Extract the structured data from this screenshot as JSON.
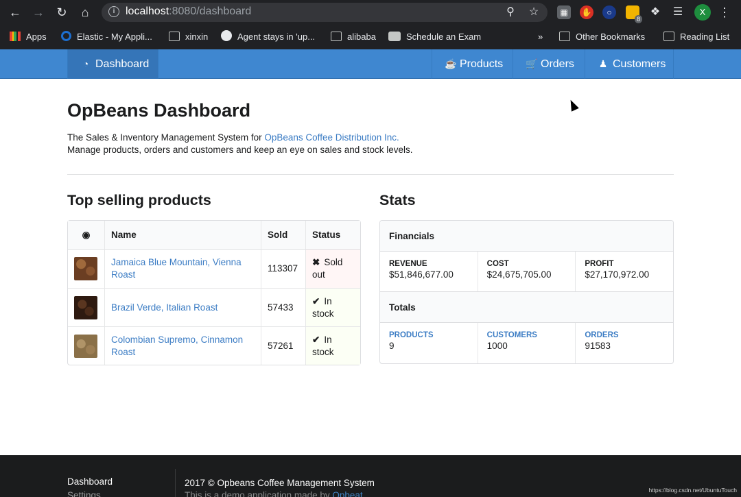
{
  "browser": {
    "url_host": "localhost",
    "url_port_path": ":8080/dashboard",
    "extension_badge": "8",
    "avatar_initial": "X",
    "bookmarks": [
      "Apps",
      "Elastic - My Appli...",
      "xinxin",
      "Agent stays in 'up...",
      "alibaba",
      "Schedule an Exam"
    ],
    "overflow": "»",
    "other_bookmarks": "Other Bookmarks",
    "reading_list": "Reading List"
  },
  "nav": {
    "dashboard": "Dashboard",
    "products": "Products",
    "orders": "Orders",
    "customers": "Customers"
  },
  "page": {
    "title": "OpBeans Dashboard",
    "intro_prefix": "The Sales & Inventory Management System for ",
    "intro_link": "OpBeans Coffee Distribution Inc.",
    "intro_line2": "Manage products, orders and customers and keep an eye on sales and stock levels."
  },
  "top_products": {
    "heading": "Top selling products",
    "columns": [
      "Name",
      "Sold",
      "Status"
    ],
    "rows": [
      {
        "name": "Jamaica Blue Mountain, Vienna Roast",
        "sold": "113307",
        "status": "Sold out",
        "color": "#6b3e22"
      },
      {
        "name": "Brazil Verde, Italian Roast",
        "sold": "57433",
        "status": "In stock",
        "color": "#2e1a10"
      },
      {
        "name": "Colombian Supremo, Cinnamon Roast",
        "sold": "57261",
        "status": "In stock",
        "color": "#8a7048"
      }
    ]
  },
  "stats": {
    "heading": "Stats",
    "financials_label": "Financials",
    "revenue_label": "Revenue",
    "revenue": "$51,846,677.00",
    "cost_label": "Cost",
    "cost": "$24,675,705.00",
    "profit_label": "Profit",
    "profit": "$27,170,972.00",
    "totals_label": "Totals",
    "products_label": "Products",
    "products": "9",
    "customers_label": "Customers",
    "customers": "1000",
    "orders_label": "Orders",
    "orders": "91583"
  },
  "footer": {
    "link_dashboard": "Dashboard",
    "link_settings": "Settings",
    "copyright": "2017 © Opbeans Coffee Management System",
    "demo_prefix": "This is a demo application made by ",
    "demo_link": "Opbeat"
  },
  "watermark": "https://blog.csdn.net/UbuntuTouch",
  "colors": {
    "nav_blue": "#3f87d0",
    "link_blue": "#3b7cc4",
    "sold_out": "#9f3a38",
    "in_stock": "#2c662d"
  }
}
